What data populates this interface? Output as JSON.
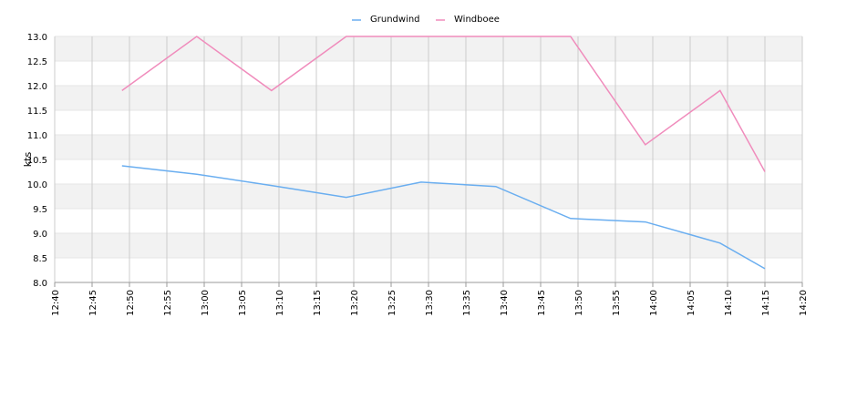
{
  "chart_data": {
    "type": "line",
    "y_label": "kts",
    "x": [
      "12:49",
      "12:59",
      "13:09",
      "13:19",
      "13:29",
      "13:39",
      "13:49",
      "13:59",
      "14:09",
      "14:15"
    ],
    "series": [
      {
        "name": "Grundwind",
        "color": "#6aaef0",
        "values": [
          10.37,
          10.2,
          9.97,
          9.73,
          10.04,
          9.95,
          9.3,
          9.23,
          8.8,
          8.28
        ]
      },
      {
        "name": "Windboee",
        "color": "#f08cbc",
        "values": [
          11.9,
          13.0,
          11.9,
          13.0,
          13.0,
          13.0,
          13.0,
          10.8,
          11.9,
          10.25
        ]
      }
    ],
    "xlim": [
      "12:40",
      "14:20"
    ],
    "xticks": [
      "12:40",
      "12:45",
      "12:50",
      "12:55",
      "13:00",
      "13:05",
      "13:10",
      "13:15",
      "13:20",
      "13:25",
      "13:30",
      "13:35",
      "13:40",
      "13:45",
      "13:50",
      "13:55",
      "14:00",
      "14:05",
      "14:10",
      "14:15",
      "14:20"
    ],
    "ylim": [
      8,
      13
    ],
    "yticks": [
      {
        "value": 8,
        "label": "8.0"
      },
      {
        "value": 8.5,
        "label": "8.5"
      },
      {
        "value": 9,
        "label": "9.0"
      },
      {
        "value": 9.5,
        "label": "9.5"
      },
      {
        "value": 10,
        "label": "10.0"
      },
      {
        "value": 10.5,
        "label": "10.5"
      },
      {
        "value": 11,
        "label": "11.0"
      },
      {
        "value": 11.5,
        "label": "11.5"
      },
      {
        "value": 12,
        "label": "12.0"
      },
      {
        "value": 12.5,
        "label": "12.5"
      },
      {
        "value": 13,
        "label": "13.0"
      }
    ],
    "grid": true,
    "legend": "top"
  }
}
